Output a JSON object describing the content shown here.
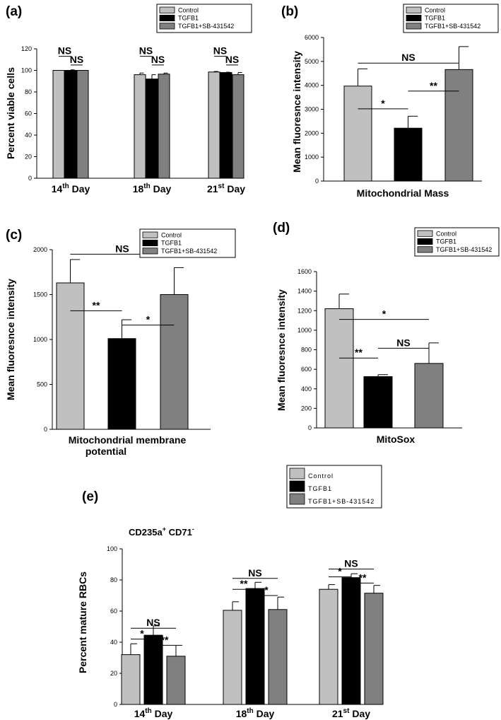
{
  "colors": {
    "control": "#c0c0c0",
    "tgfb1": "#000000",
    "sb": "#808080"
  },
  "chart_data": [
    {
      "panel": "(a)",
      "type": "bar",
      "ylabel": "Percent viable cells",
      "ylim": [
        0,
        120
      ],
      "yticks": [
        0,
        20,
        40,
        60,
        80,
        100,
        120
      ],
      "categories": [
        {
          "base": "14",
          "sup": "th",
          "rest": " Day"
        },
        {
          "base": "18",
          "sup": "th",
          "rest": " Day"
        },
        {
          "base": "21",
          "sup": "st",
          "rest": " Day"
        }
      ],
      "legend": [
        "Control",
        "TGFB1",
        "TGFB1+SB-431542"
      ],
      "series": [
        {
          "name": "Control",
          "values": [
            100,
            96,
            98.5
          ],
          "errors": [
            0,
            1.5,
            0.5
          ]
        },
        {
          "name": "TGFB1",
          "values": [
            100,
            92,
            98
          ],
          "errors": [
            0.5,
            4,
            0.3
          ]
        },
        {
          "name": "TGFB1+SB-431542",
          "values": [
            100,
            96.5,
            96
          ],
          "errors": [
            0,
            1,
            2
          ]
        }
      ],
      "annotations": [
        {
          "text": "NS",
          "group": 0,
          "from": 0,
          "to": 1,
          "y": 113
        },
        {
          "text": "NS",
          "group": 0,
          "from": 1,
          "to": 2,
          "y": 105
        },
        {
          "text": "NS",
          "group": 1,
          "from": 0,
          "to": 1,
          "y": 113
        },
        {
          "text": "NS",
          "group": 1,
          "from": 1,
          "to": 2,
          "y": 105
        },
        {
          "text": "NS",
          "group": 2,
          "from": 0,
          "to": 1,
          "y": 113
        },
        {
          "text": "NS",
          "group": 2,
          "from": 1,
          "to": 2,
          "y": 105
        }
      ]
    },
    {
      "panel": "(b)",
      "type": "bar",
      "ylabel": "Mean fluoresnce intensity",
      "xlabel": "Mitochondrial  Mass",
      "ylim": [
        0,
        6000
      ],
      "yticks": [
        0,
        1000,
        2000,
        3000,
        4000,
        5000,
        6000
      ],
      "legend": [
        "Control",
        "TGFB1",
        "TGFB1+SB-431542"
      ],
      "series": [
        {
          "name": "Control",
          "values": [
            3970
          ],
          "errors": [
            720
          ]
        },
        {
          "name": "TGFB1",
          "values": [
            2210
          ],
          "errors": [
            500
          ]
        },
        {
          "name": "TGFB1+SB-431542",
          "values": [
            4660
          ],
          "errors": [
            960
          ]
        }
      ],
      "annotations": [
        {
          "text": "NS",
          "from": 0,
          "to": 2,
          "y": 4930
        },
        {
          "text": "*",
          "from": 0,
          "to": 1,
          "y": 3020
        },
        {
          "text": "**",
          "from": 1,
          "to": 2,
          "y": 3760
        }
      ]
    },
    {
      "panel": "(c)",
      "type": "bar",
      "ylabel": "Mean fluoresnce intensity",
      "xlabel_lines": [
        "Mitochondrial  membrane",
        "potential"
      ],
      "ylim": [
        0,
        2000
      ],
      "yticks": [
        0,
        500,
        1000,
        1500,
        2000
      ],
      "legend": [
        "Control",
        "TGFB1",
        "TGFB1+SB-431542"
      ],
      "series": [
        {
          "name": "Control",
          "values": [
            1630
          ],
          "errors": [
            260
          ]
        },
        {
          "name": "TGFB1",
          "values": [
            1010
          ],
          "errors": [
            210
          ]
        },
        {
          "name": "TGFB1+SB-431542",
          "values": [
            1500
          ],
          "errors": [
            300
          ]
        }
      ],
      "annotations": [
        {
          "text": "NS",
          "from": 0,
          "to": 2,
          "y": 1950
        },
        {
          "text": "**",
          "from": 0,
          "to": 1,
          "y": 1320
        },
        {
          "text": "*",
          "from": 1,
          "to": 2,
          "y": 1160
        }
      ]
    },
    {
      "panel": "(d)",
      "type": "bar",
      "ylabel": "Mean fluoresnce intensity",
      "xlabel": "MitoSox",
      "ylim": [
        0,
        1600
      ],
      "yticks": [
        0,
        200,
        400,
        600,
        800,
        1000,
        1200,
        1400,
        1600
      ],
      "legend": [
        "Control",
        "TGFB1",
        "TGFB1+SB-431542"
      ],
      "series": [
        {
          "name": "Control",
          "values": [
            1220
          ],
          "errors": [
            150
          ]
        },
        {
          "name": "TGFB1",
          "values": [
            525
          ],
          "errors": [
            20
          ]
        },
        {
          "name": "TGFB1+SB-431542",
          "values": [
            660
          ],
          "errors": [
            210
          ]
        }
      ],
      "annotations": [
        {
          "text": "*",
          "from": 0,
          "to": 2,
          "y": 1110
        },
        {
          "text": "**",
          "from": 0,
          "to": 1,
          "y": 715
        },
        {
          "text": "NS",
          "from": 1,
          "to": 2,
          "y": 815
        }
      ]
    },
    {
      "panel": "(e)",
      "type": "bar",
      "title_parts": [
        "CD235a",
        "+",
        " CD71",
        "-"
      ],
      "ylabel": "Percent mature RBCs",
      "ylim": [
        0,
        100
      ],
      "yticks": [
        0,
        20,
        40,
        60,
        80,
        100
      ],
      "categories": [
        {
          "base": "14",
          "sup": "th",
          "rest": " Day"
        },
        {
          "base": "18",
          "sup": "th",
          "rest": " Day"
        },
        {
          "base": "21",
          "sup": "st",
          "rest": " Day"
        }
      ],
      "legend": [
        "Control",
        "TGFB1",
        "TGFB1+SB-431542"
      ],
      "series": [
        {
          "name": "Control",
          "values": [
            32,
            60.5,
            74
          ],
          "errors": [
            7,
            5.5,
            3
          ]
        },
        {
          "name": "TGFB1",
          "values": [
            44.5,
            74.5,
            81.5
          ],
          "errors": [
            6,
            4,
            2.5
          ]
        },
        {
          "name": "TGFB1+SB-431542",
          "values": [
            31,
            61,
            71.5
          ],
          "errors": [
            7,
            8,
            5
          ]
        }
      ],
      "annotations": [
        {
          "text": "NS",
          "group": 0,
          "from": 0,
          "to": 2,
          "y": 49
        },
        {
          "text": "*",
          "group": 0,
          "from": 0,
          "to": 1,
          "y": 42
        },
        {
          "text": "**",
          "group": 0,
          "from": 1,
          "to": 2,
          "y": 38
        },
        {
          "text": "NS",
          "group": 1,
          "from": 0,
          "to": 2,
          "y": 81
        },
        {
          "text": "**",
          "group": 1,
          "from": 0,
          "to": 1,
          "y": 74
        },
        {
          "text": "*",
          "group": 1,
          "from": 1,
          "to": 2,
          "y": 70
        },
        {
          "text": "NS",
          "group": 2,
          "from": 0,
          "to": 2,
          "y": 87
        },
        {
          "text": "*",
          "group": 2,
          "from": 0,
          "to": 1,
          "y": 82
        },
        {
          "text": "**",
          "group": 2,
          "from": 1,
          "to": 2,
          "y": 78
        }
      ]
    }
  ]
}
